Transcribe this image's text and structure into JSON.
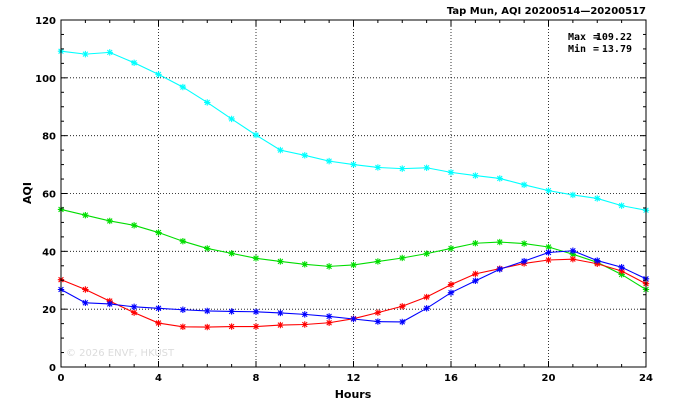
{
  "chart_data": {
    "type": "line",
    "title": "Tap Mun, AQI 20200514—20200517",
    "xlabel": "Hours",
    "ylabel": "AQI",
    "xlim": [
      0,
      24
    ],
    "ylim": [
      0,
      120
    ],
    "xticks": [
      0,
      4,
      8,
      12,
      16,
      20,
      24
    ],
    "yticks": [
      0,
      20,
      40,
      60,
      80,
      100,
      120
    ],
    "grid": true,
    "marker": "asterisk",
    "x": [
      0,
      1,
      2,
      3,
      4,
      5,
      6,
      7,
      8,
      9,
      10,
      11,
      12,
      13,
      14,
      15,
      16,
      17,
      18,
      19,
      20,
      21,
      22,
      23,
      24
    ],
    "stats": {
      "max_label": "Max",
      "max_value": "109.22",
      "min_label": "Min",
      "min_value": "13.79"
    },
    "watermark": "© 2026  ENVF, HKUST",
    "series": [
      {
        "color": "#00ffff",
        "values": [
          109.2,
          108.2,
          108.8,
          105.2,
          101.2,
          96.8,
          91.5,
          85.8,
          80.2,
          75.0,
          73.2,
          71.2,
          70.0,
          69.0,
          68.6,
          68.9,
          67.3,
          66.2,
          65.2,
          63.0,
          61.0,
          59.5,
          58.3,
          55.8,
          54.2
        ]
      },
      {
        "color": "#00dd00",
        "values": [
          54.5,
          52.5,
          50.5,
          49.0,
          46.5,
          43.5,
          41.0,
          39.3,
          37.6,
          36.5,
          35.5,
          34.8,
          35.3,
          36.5,
          37.7,
          39.2,
          41.0,
          42.8,
          43.2,
          42.7,
          41.5,
          39.0,
          36.2,
          32.0,
          26.8
        ]
      },
      {
        "color": "#ff0000",
        "values": [
          30.2,
          26.8,
          22.8,
          18.8,
          15.2,
          13.9,
          13.8,
          14.0,
          14.0,
          14.5,
          14.7,
          15.3,
          16.7,
          18.8,
          21.0,
          24.2,
          28.5,
          32.2,
          34.0,
          35.8,
          37.0,
          37.3,
          35.7,
          33.2,
          28.8
        ]
      },
      {
        "color": "#0000ff",
        "values": [
          26.8,
          22.2,
          21.8,
          20.8,
          20.3,
          19.8,
          19.4,
          19.2,
          19.1,
          18.7,
          18.2,
          17.5,
          16.6,
          15.7,
          15.6,
          20.3,
          25.7,
          29.8,
          33.8,
          36.6,
          39.6,
          40.2,
          36.8,
          34.5,
          30.5
        ]
      }
    ]
  }
}
